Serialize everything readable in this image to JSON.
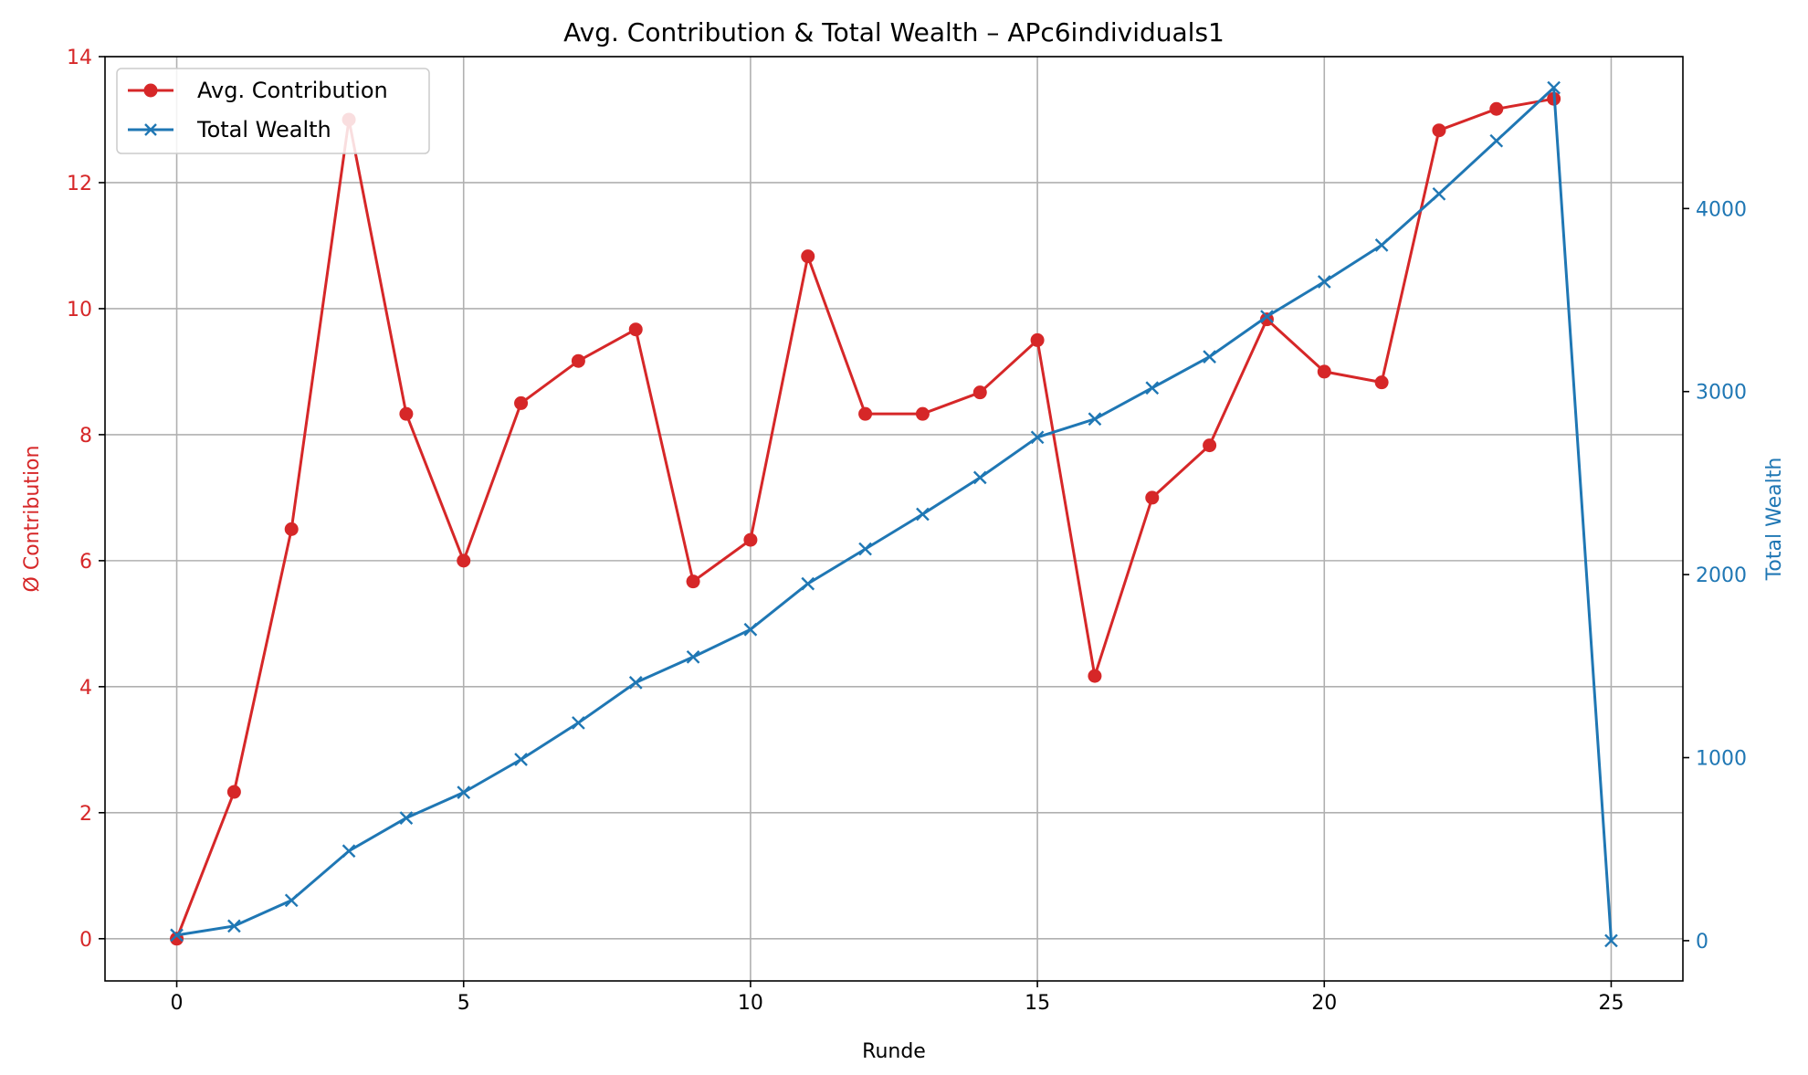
{
  "chart_data": {
    "type": "line",
    "title": "Avg. Contribution & Total Wealth – APc6individuals1",
    "xlabel": "Runde",
    "ylabel_left": "Ø Contribution",
    "ylabel_right": "Total Wealth",
    "xlim": [
      -1.25,
      26.25
    ],
    "ylim_left": [
      -0.67,
      14
    ],
    "ylim_right": [
      -220,
      4830
    ],
    "x_ticks": [
      0,
      5,
      10,
      15,
      20,
      25
    ],
    "y_ticks_left": [
      0,
      2,
      4,
      6,
      8,
      10,
      12,
      14
    ],
    "y_ticks_right": [
      0,
      1000,
      2000,
      3000,
      4000
    ],
    "grid": true,
    "legend_position": "upper-left",
    "series": [
      {
        "name": "Avg. Contribution",
        "axis": "left",
        "color": "#d62728",
        "marker": "circle",
        "x": [
          0,
          1,
          2,
          3,
          4,
          5,
          6,
          7,
          8,
          9,
          10,
          11,
          12,
          13,
          14,
          15,
          16,
          17,
          18,
          19,
          20,
          21,
          22,
          23,
          24
        ],
        "values": [
          0,
          2.33,
          6.5,
          13.0,
          8.33,
          6.0,
          8.5,
          9.17,
          9.67,
          5.67,
          6.33,
          10.83,
          8.33,
          8.33,
          8.67,
          9.5,
          4.17,
          7.0,
          7.83,
          9.83,
          9.0,
          8.83,
          12.83,
          13.17,
          13.33
        ]
      },
      {
        "name": "Total Wealth",
        "axis": "right",
        "color": "#1f77b4",
        "marker": "x",
        "x": [
          0,
          1,
          2,
          3,
          4,
          5,
          6,
          7,
          8,
          9,
          10,
          11,
          12,
          13,
          14,
          15,
          16,
          17,
          18,
          19,
          20,
          21,
          22,
          23,
          24,
          25
        ],
        "values": [
          30,
          80,
          220,
          490,
          670,
          810,
          990,
          1190,
          1410,
          1550,
          1700,
          1950,
          2140,
          2330,
          2530,
          2750,
          2850,
          3020,
          3190,
          3410,
          3600,
          3800,
          4080,
          4370,
          4660,
          0
        ]
      }
    ]
  }
}
